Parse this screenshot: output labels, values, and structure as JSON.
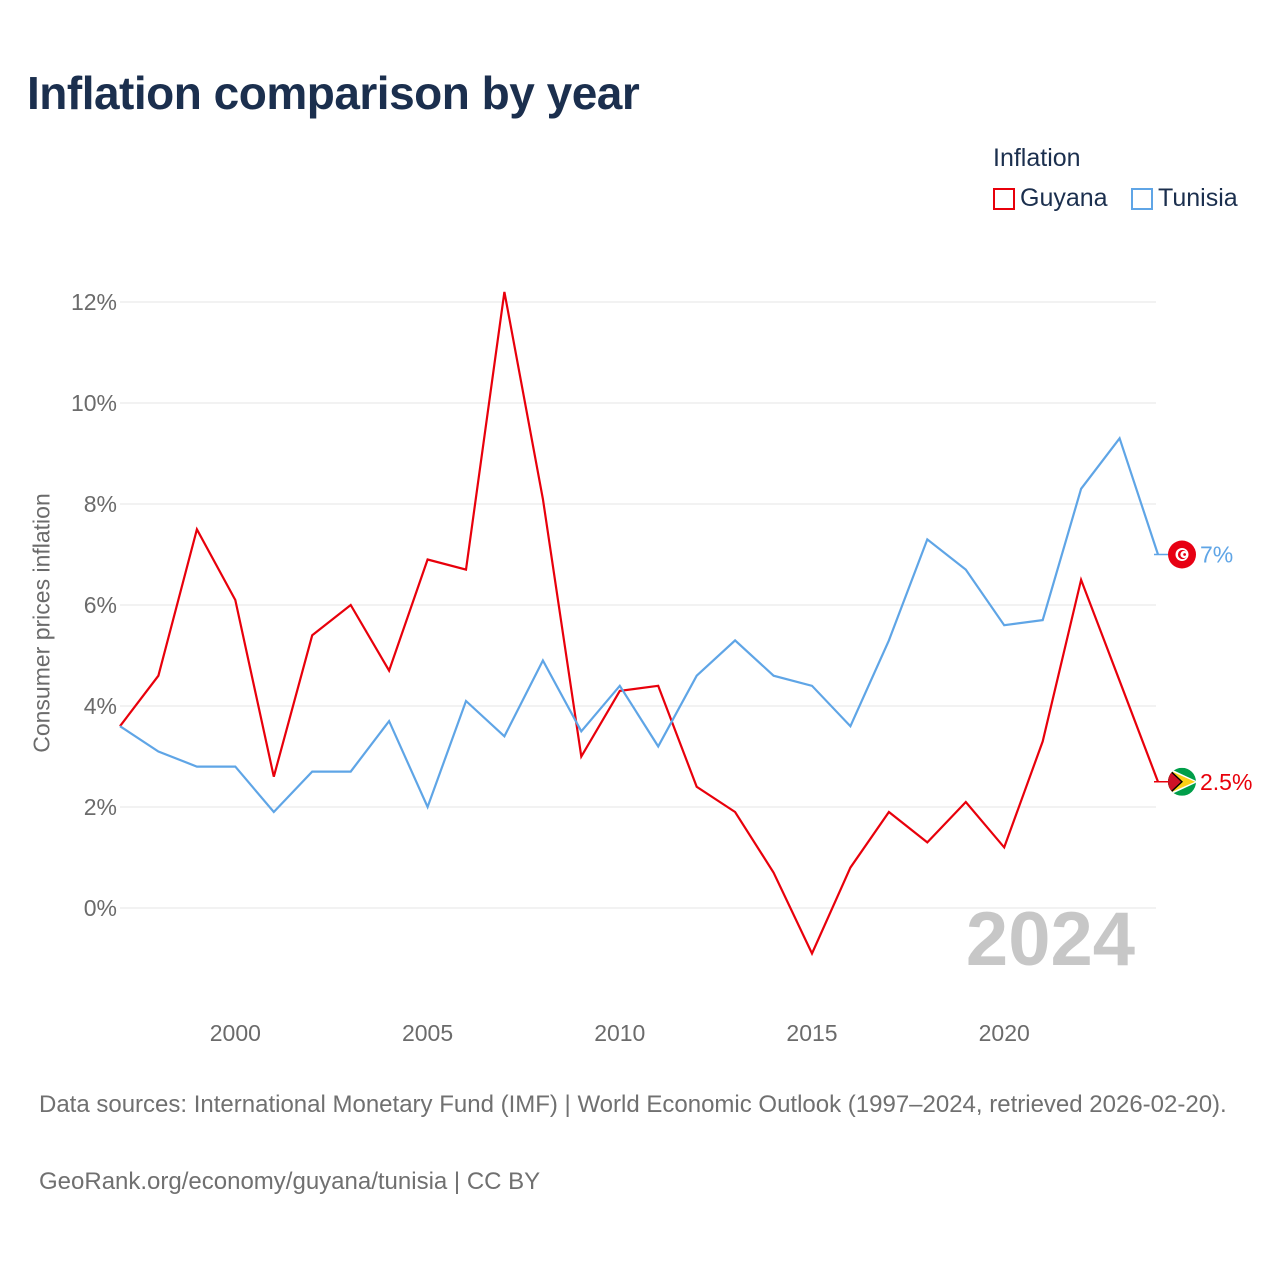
{
  "page": {
    "title": "Inflation comparison by year",
    "legend_title": "Inflation",
    "sources": "Data sources: International Monetary Fund (IMF) | World Economic Outlook (1997–2024, retrieved 2026-02-20).",
    "link": "GeoRank.org/economy/guyana/tunisia | CC BY"
  },
  "chart_data": {
    "type": "line",
    "title": "Inflation comparison by year",
    "xlabel": "",
    "ylabel": "Consumer prices inflation",
    "xlim": [
      1997,
      2024
    ],
    "ylim": [
      -2,
      12.5
    ],
    "x_ticks": [
      2000,
      2005,
      2010,
      2015,
      2020
    ],
    "y_ticks": [
      0,
      2,
      4,
      6,
      8,
      10,
      12
    ],
    "y_tick_labels": [
      "0%",
      "2%",
      "4%",
      "6%",
      "8%",
      "10%",
      "12%"
    ],
    "grid": true,
    "legend_position": "top-right",
    "watermark_year": "2024",
    "x": [
      1997,
      1998,
      1999,
      2000,
      2001,
      2002,
      2003,
      2004,
      2005,
      2006,
      2007,
      2008,
      2009,
      2010,
      2011,
      2012,
      2013,
      2014,
      2015,
      2016,
      2017,
      2018,
      2019,
      2020,
      2021,
      2022,
      2023,
      2024
    ],
    "series": [
      {
        "name": "Guyana",
        "color": "#e8000b",
        "end_label": "2.5%",
        "flag_icon": "guyana-flag-icon",
        "values": [
          3.6,
          4.6,
          7.5,
          6.1,
          2.6,
          5.4,
          6.0,
          4.7,
          6.9,
          6.7,
          12.2,
          8.1,
          3.0,
          4.3,
          4.4,
          2.4,
          1.9,
          0.7,
          -0.9,
          0.8,
          1.9,
          1.3,
          2.1,
          1.2,
          3.3,
          6.5,
          4.5,
          2.5
        ]
      },
      {
        "name": "Tunisia",
        "color": "#5fa5e6",
        "end_label": "7%",
        "flag_icon": "tunisia-flag-icon",
        "values": [
          3.6,
          3.1,
          2.8,
          2.8,
          1.9,
          2.7,
          2.7,
          3.7,
          2.0,
          4.1,
          3.4,
          4.9,
          3.5,
          4.4,
          3.2,
          4.6,
          5.3,
          4.6,
          4.4,
          3.6,
          5.3,
          7.3,
          6.7,
          5.6,
          5.7,
          8.3,
          9.3,
          7.0
        ]
      }
    ]
  }
}
